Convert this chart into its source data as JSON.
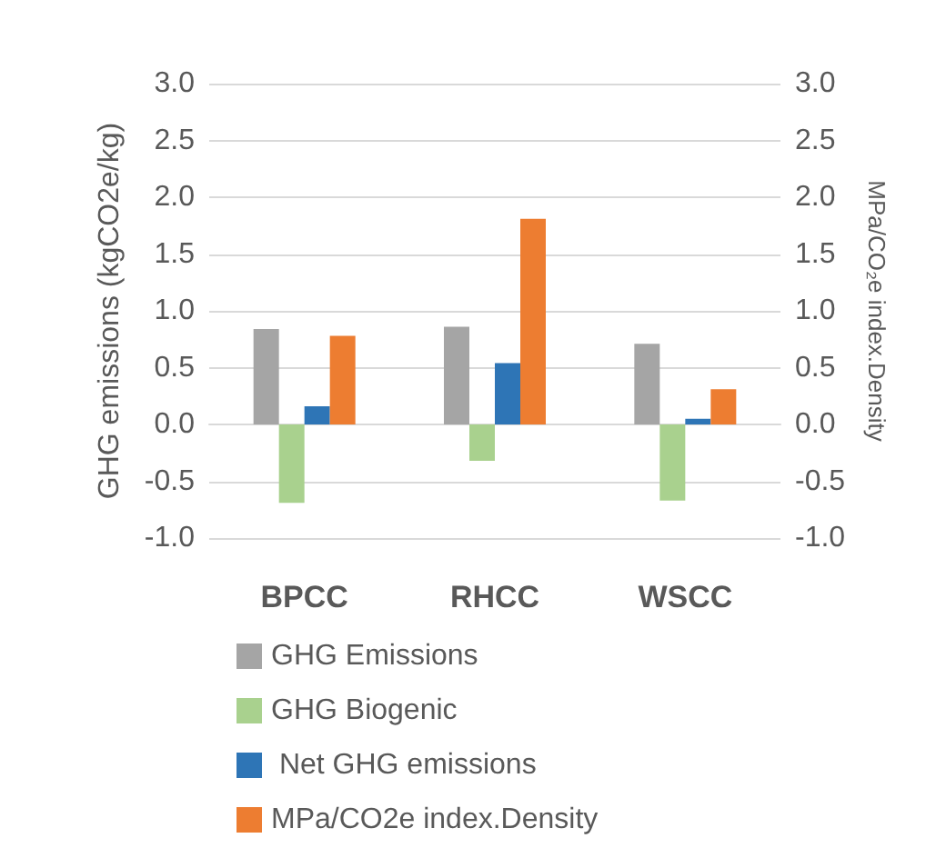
{
  "chart_data": {
    "type": "bar",
    "ylabel": "GHG emissions (kgCO2e/kg)",
    "y2label": "MPa/CO₂e index.Density",
    "categories": [
      "BPCC",
      "RHCC",
      "WSCC"
    ],
    "series": [
      {
        "name": "GHG Emissions",
        "color": "#a5a5a5",
        "values": [
          0.84,
          0.86,
          0.71
        ]
      },
      {
        "name": "GHG Biogenic",
        "color": "#a9d18e",
        "values": [
          -0.69,
          -0.32,
          -0.67
        ]
      },
      {
        "name": " Net GHG emissions",
        "color": "#2e75b6",
        "values": [
          0.16,
          0.54,
          0.05
        ]
      },
      {
        "name": "MPa/CO2e index.Density",
        "color": "#ed7d31",
        "values": [
          0.78,
          1.81,
          0.31
        ],
        "axis": "y2"
      }
    ],
    "ylim": [
      -1,
      3
    ],
    "yticks": [
      {
        "value": -1,
        "label": "-1.0"
      },
      -0.5,
      {
        "value": 0,
        "label": "0.0"
      },
      0.5,
      {
        "value": 1,
        "label": "1.0"
      },
      1.5,
      {
        "value": 2,
        "label": "2.0"
      },
      2.5,
      {
        "value": 3,
        "label": "3.0"
      }
    ],
    "y2lim": [
      -1,
      3
    ],
    "y2ticks": [
      {
        "value": -1,
        "label": "-1.0"
      },
      -0.5,
      {
        "value": 0,
        "label": "0.0"
      },
      0.5,
      {
        "value": 1,
        "label": "1.0"
      },
      1.5,
      {
        "value": 2,
        "label": "2.0"
      },
      2.5,
      {
        "value": 3,
        "label": "3.0"
      }
    ],
    "grid": "y",
    "legend": "bottom"
  }
}
